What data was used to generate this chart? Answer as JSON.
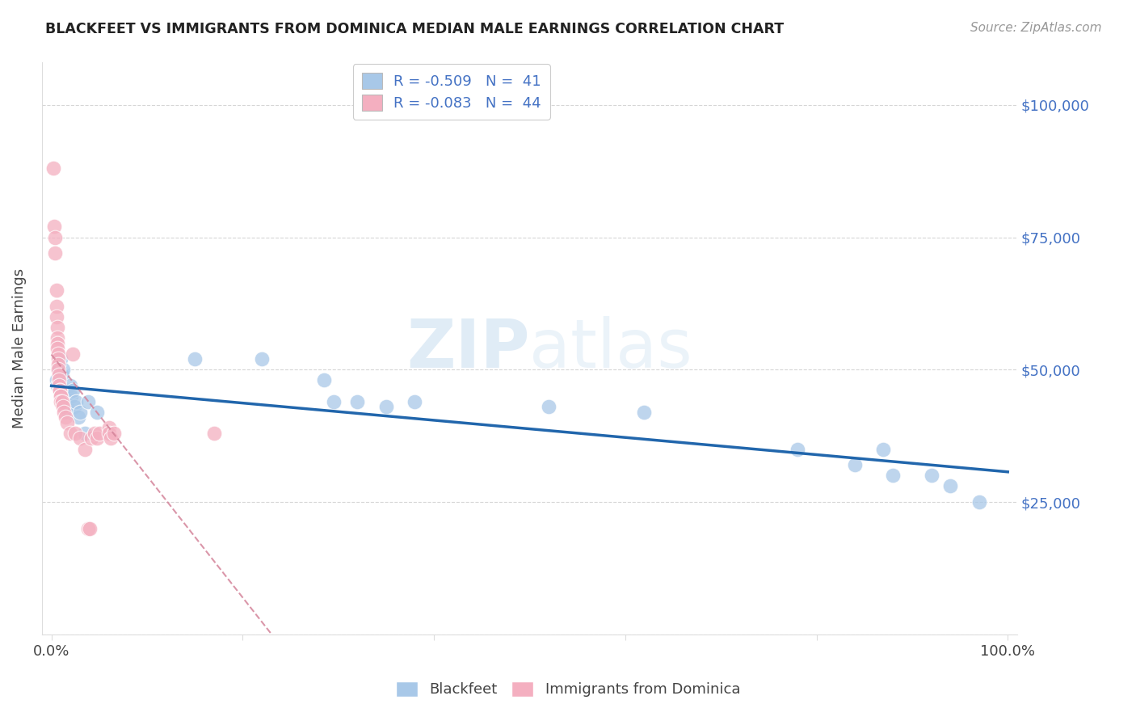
{
  "title": "BLACKFEET VS IMMIGRANTS FROM DOMINICA MEDIAN MALE EARNINGS CORRELATION CHART",
  "source": "Source: ZipAtlas.com",
  "ylabel": "Median Male Earnings",
  "yticks": [
    0,
    25000,
    50000,
    75000,
    100000
  ],
  "ytick_labels": [
    "",
    "$25,000",
    "$50,000",
    "$75,000",
    "$100,000"
  ],
  "ytick_color": "#4472c4",
  "legend_text_1": "R = -0.509   N =  41",
  "legend_text_2": "R = -0.083   N =  44",
  "blue_color": "#a8c8e8",
  "blue_line_color": "#2166ac",
  "pink_color": "#f4afc0",
  "pink_line_color": "#d4849a",
  "background_color": "#ffffff",
  "grid_color": "#cccccc",
  "blue_scatter_x": [
    0.005,
    0.006,
    0.007,
    0.008,
    0.009,
    0.01,
    0.011,
    0.012,
    0.013,
    0.014,
    0.015,
    0.016,
    0.017,
    0.018,
    0.019,
    0.02,
    0.021,
    0.022,
    0.024,
    0.026,
    0.028,
    0.03,
    0.035,
    0.038,
    0.048,
    0.15,
    0.22,
    0.285,
    0.295,
    0.32,
    0.35,
    0.38,
    0.52,
    0.62,
    0.78,
    0.84,
    0.87,
    0.88,
    0.92,
    0.94,
    0.97
  ],
  "blue_scatter_y": [
    48000,
    47000,
    50000,
    50000,
    49000,
    52000,
    49000,
    50000,
    45000,
    46000,
    43000,
    44000,
    45000,
    42000,
    46000,
    47000,
    45000,
    46000,
    43000,
    44000,
    41000,
    42000,
    38000,
    44000,
    42000,
    52000,
    52000,
    48000,
    44000,
    44000,
    43000,
    44000,
    43000,
    42000,
    35000,
    32000,
    35000,
    30000,
    30000,
    28000,
    25000
  ],
  "pink_scatter_x": [
    0.002,
    0.003,
    0.004,
    0.004,
    0.005,
    0.005,
    0.005,
    0.006,
    0.006,
    0.006,
    0.006,
    0.007,
    0.007,
    0.007,
    0.007,
    0.008,
    0.008,
    0.008,
    0.009,
    0.009,
    0.01,
    0.01,
    0.01,
    0.011,
    0.012,
    0.013,
    0.015,
    0.016,
    0.02,
    0.022,
    0.025,
    0.03,
    0.035,
    0.038,
    0.04,
    0.042,
    0.045,
    0.048,
    0.05,
    0.06,
    0.06,
    0.062,
    0.065,
    0.17
  ],
  "pink_scatter_y": [
    88000,
    77000,
    75000,
    72000,
    65000,
    62000,
    60000,
    58000,
    56000,
    55000,
    54000,
    53000,
    52000,
    51000,
    50000,
    49000,
    48000,
    47000,
    46000,
    46000,
    45000,
    45000,
    44000,
    44000,
    43000,
    42000,
    41000,
    40000,
    38000,
    53000,
    38000,
    37000,
    35000,
    20000,
    20000,
    37000,
    38000,
    37000,
    38000,
    39000,
    38000,
    37000,
    38000,
    38000
  ],
  "blue_R": "-0.509",
  "blue_N": "41",
  "pink_R": "-0.083",
  "pink_N": "44"
}
